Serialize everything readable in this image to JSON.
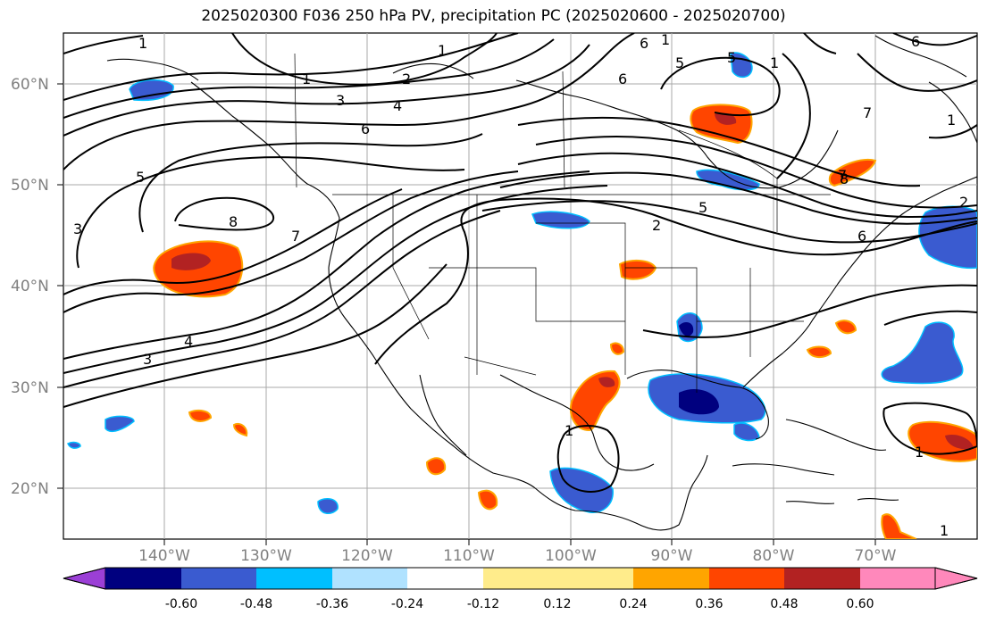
{
  "title": "2025020300 F036 250 hPa PV, precipitation PC (2025020600 - 2025020700)",
  "map": {
    "projection": "plate-carree",
    "lon_range": [
      -150,
      -60
    ],
    "lat_range": [
      15,
      65
    ],
    "lat_labels": [
      "60°N",
      "50°N",
      "40°N",
      "30°N",
      "20°N"
    ],
    "lon_labels": [
      "140°W",
      "130°W",
      "120°W",
      "110°W",
      "100°W",
      "90°W",
      "80°W",
      "70°W"
    ],
    "gridlines": true
  },
  "pv_contour_labels": [
    "1",
    "1",
    "1",
    "1",
    "1",
    "1",
    "1",
    "1",
    "1",
    "2",
    "2",
    "3",
    "3",
    "3",
    "4",
    "4",
    "5",
    "5",
    "5",
    "6",
    "6",
    "6",
    "6",
    "6",
    "7",
    "7",
    "7",
    "8",
    "8",
    "5",
    "2"
  ],
  "colorbar": {
    "levels": [
      "-0.60",
      "-0.48",
      "-0.36",
      "-0.24",
      "-0.12",
      "0.12",
      "0.24",
      "0.36",
      "0.48",
      "0.60"
    ],
    "colors": {
      "extend_low": "#9b3fd6",
      "c1": "#00007f",
      "c2": "#3a5bd0",
      "c3": "#00bfff",
      "c4": "#b0e2ff",
      "c5": "#ffffff",
      "c6": "#ffec8b",
      "c7": "#ffa500",
      "c8": "#ff4500",
      "c9": "#b22222",
      "extend_high": "#ff88bb"
    }
  }
}
